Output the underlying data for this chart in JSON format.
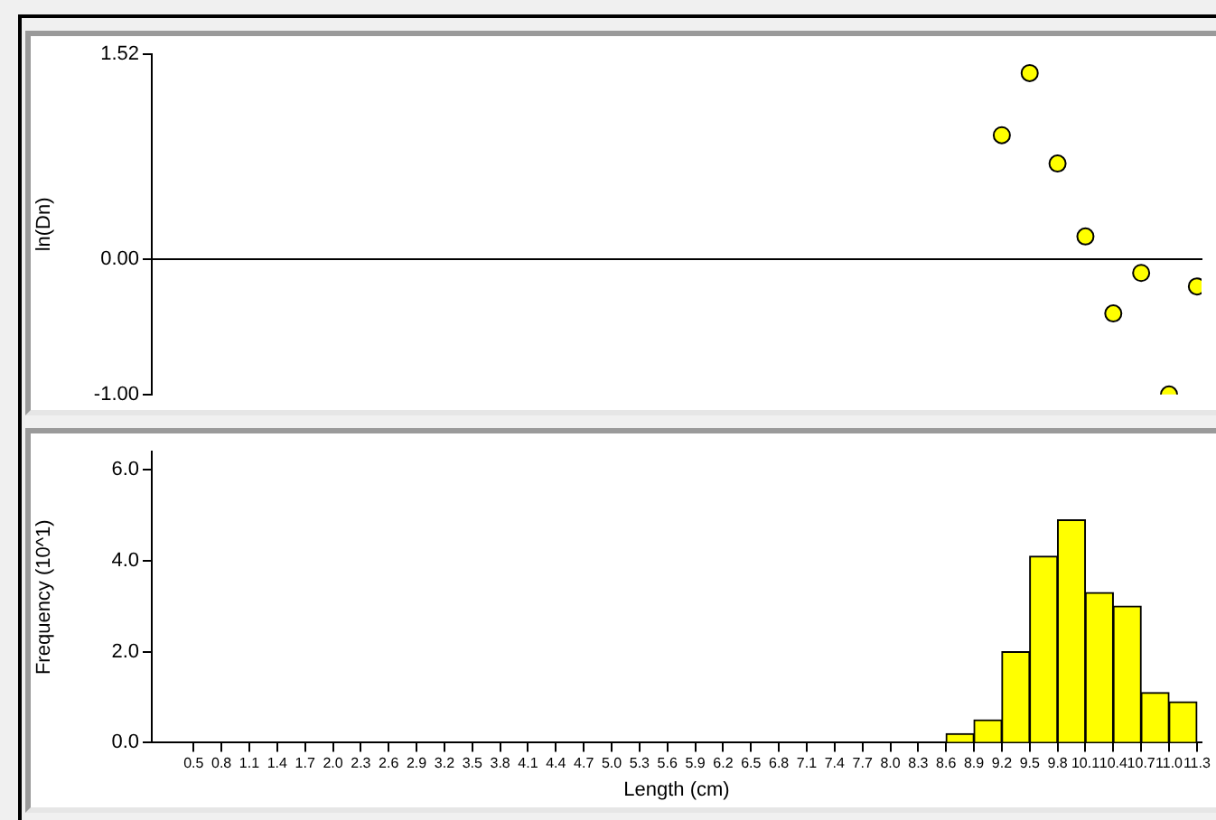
{
  "chart_data": [
    {
      "type": "scatter",
      "ylabel": "ln(Dn)",
      "color": "#ffff00",
      "marker": "circle",
      "x": [
        9.2,
        9.5,
        9.8,
        10.1,
        10.4,
        10.7,
        11.0,
        11.3
      ],
      "values": [
        0.92,
        1.38,
        0.71,
        0.17,
        -0.4,
        -0.1,
        -1.0,
        -0.2
      ],
      "xlim": [
        0.05,
        11.35
      ],
      "ylim": [
        -1.0,
        1.52
      ],
      "yticks": [
        {
          "value": -1.0,
          "label": "-1.00"
        },
        {
          "value": 0,
          "label": "0.00"
        },
        1.52
      ],
      "tick_labels": "y"
    },
    {
      "type": "histogram",
      "xlabel": "Length (cm)",
      "ylabel": "Frequency (10^1)",
      "color": "#ffff00",
      "bins": [
        8.6,
        8.9,
        9.2,
        9.5,
        9.8,
        10.1,
        10.4,
        10.7,
        11.0,
        11.3
      ],
      "values": [
        0.2,
        0.5,
        2.0,
        4.1,
        4.9,
        3.3,
        3.0,
        1.1,
        0.9
      ],
      "xlim": [
        0.05,
        11.35
      ],
      "ylim": [
        0,
        6.4
      ],
      "xticks": [
        0.5,
        0.8,
        1.1,
        1.4,
        1.7,
        {
          "value": 2,
          "label": "2.0"
        },
        2.3,
        2.6,
        2.9,
        3.2,
        3.5,
        3.8,
        4.1,
        4.4,
        4.7,
        {
          "value": 5,
          "label": "5.0"
        },
        5.3,
        5.6,
        5.9,
        6.2,
        6.5,
        6.8,
        7.1,
        7.4,
        7.7,
        {
          "value": 8,
          "label": "8.0"
        },
        8.3,
        8.6,
        8.9,
        9.2,
        9.5,
        9.8,
        10.1,
        10.4,
        10.7,
        {
          "value": 11,
          "label": "11.0"
        },
        11.3
      ],
      "yticks": [
        {
          "value": 0,
          "label": "0.0"
        },
        {
          "value": 2,
          "label": "2.0"
        },
        {
          "value": 4,
          "label": "4.0"
        },
        {
          "value": 6,
          "label": "6.0"
        }
      ]
    }
  ]
}
